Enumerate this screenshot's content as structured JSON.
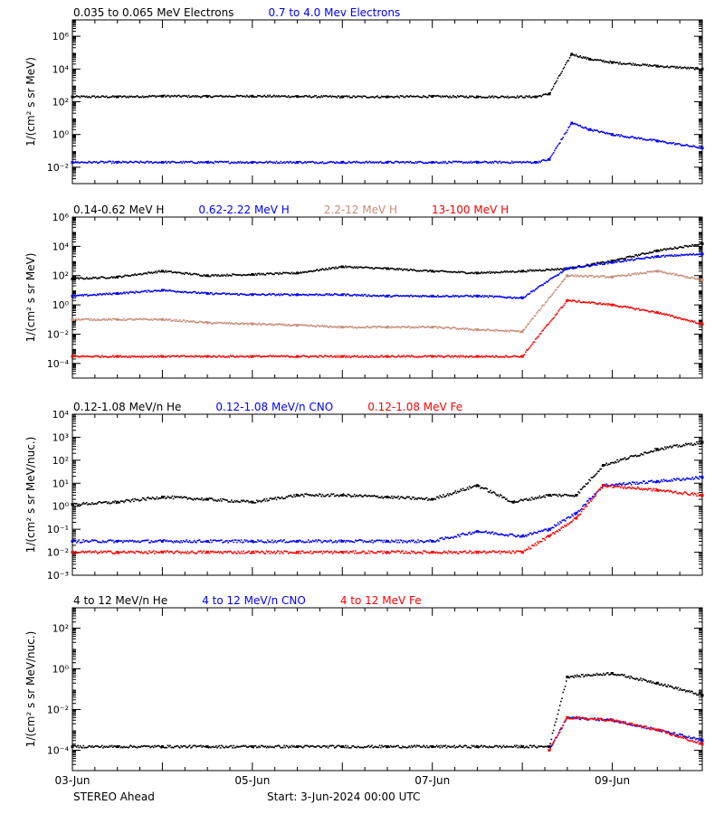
{
  "footer": {
    "left": "STEREO Ahead",
    "start": "Start:  3-Jun-2024 00:00 UTC"
  },
  "x_axis": {
    "tick_labels": [
      "03-Jun",
      "05-Jun",
      "07-Jun",
      "09-Jun"
    ],
    "xlim_days": [
      0,
      7.0
    ]
  },
  "colors": {
    "black": "#000000",
    "blue": "#0000ff",
    "brown": "#c88c78",
    "red": "#ff0000"
  },
  "chart_data": [
    {
      "type": "scatter",
      "ylabel": "1/(cm² s sr MeV)",
      "yscale": "log",
      "ylim": [
        0.001,
        10000000
      ],
      "yticks": [
        {
          "exp": 6,
          "text": "10⁶"
        },
        {
          "exp": 4,
          "text": "10⁴"
        },
        {
          "exp": 2,
          "text": "10²"
        },
        {
          "exp": 0,
          "text": "10⁰"
        },
        {
          "exp": -2,
          "text": "10⁻²"
        }
      ],
      "legend": [
        {
          "name": "0.035 to 0.065 MeV Electrons",
          "color": "#000000"
        },
        {
          "name": "0.7 to 4.0 Mev Electrons",
          "color": "#0000ff"
        }
      ],
      "series": [
        {
          "name": "0.035 to 0.065 MeV Electrons",
          "color": "#000000",
          "x": [
            0,
            0.5,
            1,
            1.5,
            2,
            2.5,
            3,
            3.5,
            4,
            4.5,
            5.15,
            5.3,
            5.55,
            5.75,
            6.0,
            6.5,
            7.0
          ],
          "y": [
            200,
            200,
            220,
            210,
            220,
            210,
            200,
            200,
            210,
            200,
            200,
            300,
            80000,
            40000,
            25000,
            15000,
            10000
          ]
        },
        {
          "name": "0.7 to 4.0 Mev Electrons",
          "color": "#0000ff",
          "x": [
            0,
            0.5,
            1,
            1.5,
            2,
            2.5,
            3,
            3.5,
            4,
            4.5,
            5.15,
            5.3,
            5.55,
            5.75,
            6.0,
            6.5,
            7.0
          ],
          "y": [
            0.02,
            0.02,
            0.02,
            0.02,
            0.02,
            0.02,
            0.02,
            0.02,
            0.02,
            0.02,
            0.02,
            0.03,
            5,
            2,
            1,
            0.4,
            0.15
          ]
        }
      ]
    },
    {
      "type": "scatter",
      "ylabel": "1/(cm² s sr MeV)",
      "yscale": "log",
      "ylim": [
        1e-05,
        1000000
      ],
      "yticks": [
        {
          "exp": 6,
          "text": "10⁶"
        },
        {
          "exp": 4,
          "text": "10⁴"
        },
        {
          "exp": 2,
          "text": "10²"
        },
        {
          "exp": 0,
          "text": "10⁰"
        },
        {
          "exp": -2,
          "text": "10⁻²"
        },
        {
          "exp": -4,
          "text": "10⁻⁴"
        }
      ],
      "legend": [
        {
          "name": "0.14-0.62 MeV H",
          "color": "#000000"
        },
        {
          "name": "0.62-2.22 MeV H",
          "color": "#0000ff"
        },
        {
          "name": "2.2-12 MeV H",
          "color": "#c88c78"
        },
        {
          "name": "13-100 MeV H",
          "color": "#ff0000"
        }
      ],
      "series": [
        {
          "name": "0.14-0.62 MeV H",
          "color": "#000000",
          "x": [
            0,
            0.5,
            1,
            1.5,
            2,
            2.5,
            3,
            3.5,
            4,
            4.5,
            5.0,
            5.5,
            6.0,
            6.5,
            7.0
          ],
          "y": [
            60,
            80,
            200,
            100,
            120,
            150,
            400,
            300,
            200,
            150,
            200,
            300,
            1000,
            5000,
            15000
          ]
        },
        {
          "name": "0.62-2.22 MeV H",
          "color": "#0000ff",
          "x": [
            0,
            0.5,
            1,
            1.5,
            2,
            2.5,
            3,
            3.5,
            4,
            4.5,
            5.0,
            5.5,
            6.0,
            6.5,
            7.0
          ],
          "y": [
            4,
            6,
            10,
            6,
            5,
            5,
            5,
            4,
            4,
            4,
            3,
            300,
            800,
            2000,
            3000
          ]
        },
        {
          "name": "2.2-12 MeV H",
          "color": "#c88c78",
          "x": [
            0,
            0.5,
            1,
            1.5,
            2,
            2.5,
            3,
            3.5,
            4,
            4.5,
            5.0,
            5.5,
            6.0,
            6.5,
            7.0
          ],
          "y": [
            0.1,
            0.1,
            0.1,
            0.06,
            0.05,
            0.04,
            0.03,
            0.03,
            0.03,
            0.02,
            0.015,
            100,
            80,
            200,
            50
          ]
        },
        {
          "name": "13-100 MeV H",
          "color": "#ff0000",
          "x": [
            0,
            0.5,
            1,
            1.5,
            2,
            2.5,
            3,
            3.5,
            4,
            4.5,
            5.0,
            5.5,
            6.0,
            6.5,
            7.0
          ],
          "y": [
            0.0003,
            0.0003,
            0.0003,
            0.0003,
            0.0003,
            0.0003,
            0.0003,
            0.0003,
            0.0003,
            0.0003,
            0.0003,
            2,
            1,
            0.3,
            0.05
          ]
        }
      ]
    },
    {
      "type": "scatter",
      "ylabel": "1/(cm² s sr MeV/nuc.)",
      "yscale": "log",
      "ylim": [
        0.001,
        10000
      ],
      "yticks": [
        {
          "exp": 4,
          "text": "10⁴"
        },
        {
          "exp": 3,
          "text": "10³"
        },
        {
          "exp": 2,
          "text": "10²"
        },
        {
          "exp": 1,
          "text": "10¹"
        },
        {
          "exp": 0,
          "text": "10⁰"
        },
        {
          "exp": -1,
          "text": "10⁻¹"
        },
        {
          "exp": -2,
          "text": "10⁻²"
        },
        {
          "exp": -3,
          "text": "10⁻³"
        }
      ],
      "legend": [
        {
          "name": "0.12-1.08 MeV/n He",
          "color": "#000000"
        },
        {
          "name": "0.12-1.08 MeV/n CNO",
          "color": "#0000ff"
        },
        {
          "name": "0.12-1.08 MeV Fe",
          "color": "#ff0000"
        }
      ],
      "series": [
        {
          "name": "0.12-1.08 MeV/n He",
          "color": "#000000",
          "x": [
            0,
            0.5,
            1,
            1.5,
            2,
            2.5,
            3,
            3.5,
            4,
            4.5,
            4.9,
            5.3,
            5.6,
            5.9,
            6.5,
            7.0
          ],
          "y": [
            1.2,
            1.5,
            2.5,
            2,
            1.5,
            3,
            3,
            2.5,
            2,
            8,
            1.5,
            3,
            3,
            60,
            300,
            600
          ]
        },
        {
          "name": "0.12-1.08 MeV/n CNO",
          "color": "#0000ff",
          "x": [
            0,
            0.5,
            1,
            1.5,
            2,
            2.5,
            3,
            3.5,
            4,
            4.5,
            5.0,
            5.3,
            5.6,
            5.9,
            6.5,
            7.0
          ],
          "y": [
            0.03,
            0.03,
            0.03,
            0.03,
            0.03,
            0.03,
            0.03,
            0.03,
            0.03,
            0.08,
            0.05,
            0.1,
            0.5,
            8,
            12,
            18
          ]
        },
        {
          "name": "0.12-1.08 MeV Fe",
          "color": "#ff0000",
          "x": [
            0,
            0.5,
            1,
            1.5,
            2,
            2.5,
            3,
            3.5,
            4,
            4.5,
            5.0,
            5.3,
            5.6,
            5.9,
            6.5,
            7.0
          ],
          "y": [
            0.01,
            0.01,
            0.01,
            0.01,
            0.01,
            0.01,
            0.01,
            0.01,
            0.01,
            0.01,
            0.01,
            0.05,
            0.3,
            8,
            5,
            3
          ]
        }
      ]
    },
    {
      "type": "scatter",
      "ylabel": "1/(cm² s sr MeV/nuc.)",
      "yscale": "log",
      "ylim": [
        1e-05,
        1000
      ],
      "yticks": [
        {
          "exp": 2,
          "text": "10²"
        },
        {
          "exp": 0,
          "text": "10⁰"
        },
        {
          "exp": -2,
          "text": "10⁻²"
        },
        {
          "exp": -4,
          "text": "10⁻⁴"
        }
      ],
      "legend": [
        {
          "name": "4 to 12 MeV/n He",
          "color": "#000000"
        },
        {
          "name": "4 to 12 MeV/n CNO",
          "color": "#0000ff"
        },
        {
          "name": "4 to 12 MeV Fe",
          "color": "#ff0000"
        }
      ],
      "series": [
        {
          "name": "4 to 12 MeV/n He",
          "color": "#000000",
          "x": [
            0,
            0.5,
            1,
            1.5,
            2,
            2.5,
            3,
            3.5,
            4,
            4.5,
            5.0,
            5.3,
            5.5,
            6.0,
            6.5,
            7.0
          ],
          "y": [
            0.00015,
            0.00015,
            0.00015,
            0.00015,
            0.00015,
            0.00015,
            0.00015,
            0.00015,
            0.00015,
            0.00015,
            0.00015,
            0.00015,
            0.4,
            0.6,
            0.2,
            0.05
          ]
        },
        {
          "name": "4 to 12 MeV/n CNO",
          "color": "#0000ff",
          "x": [
            5.3,
            5.5,
            6.0,
            6.5,
            7.0
          ],
          "y": [
            0.0001,
            0.004,
            0.003,
            0.001,
            0.0003
          ]
        },
        {
          "name": "4 to 12 MeV Fe",
          "color": "#ff0000",
          "x": [
            5.3,
            5.5,
            6.0,
            6.5,
            7.0
          ],
          "y": [
            0.0001,
            0.004,
            0.003,
            0.001,
            0.0002
          ]
        }
      ]
    }
  ]
}
